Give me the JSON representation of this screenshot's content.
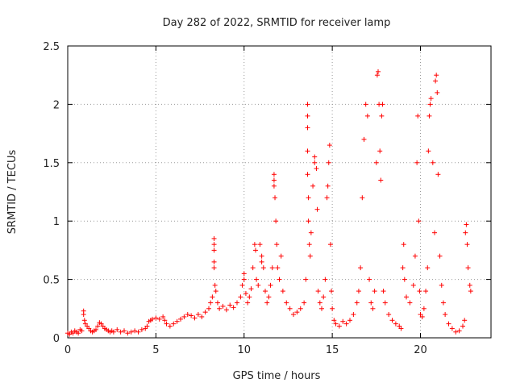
{
  "chart_data": {
    "type": "scatter",
    "title": "Day 282 of 2022, SRMTID for receiver lamp",
    "xlabel": "GPS time / hours",
    "ylabel": "SRMTID / TECUs",
    "xlim": [
      0,
      24
    ],
    "ylim": [
      0,
      2.5
    ],
    "xticks": [
      0,
      5,
      10,
      15,
      20
    ],
    "yticks": [
      0,
      0.5,
      1,
      1.5,
      2,
      2.5
    ],
    "ytick_labels": [
      "0",
      "0.5",
      "1",
      "1.5",
      "2",
      "2.5"
    ],
    "grid": true,
    "marker": "+",
    "color": "#ff0000",
    "series": [
      {
        "name": "SRMTID",
        "points": [
          [
            0.0,
            0.04
          ],
          [
            0.1,
            0.03
          ],
          [
            0.2,
            0.05
          ],
          [
            0.3,
            0.04
          ],
          [
            0.4,
            0.06
          ],
          [
            0.5,
            0.05
          ],
          [
            0.6,
            0.04
          ],
          [
            0.7,
            0.07
          ],
          [
            0.8,
            0.06
          ],
          [
            0.9,
            0.2
          ],
          [
            0.9,
            0.23
          ],
          [
            0.95,
            0.15
          ],
          [
            1.0,
            0.12
          ],
          [
            1.1,
            0.1
          ],
          [
            1.2,
            0.08
          ],
          [
            1.3,
            0.06
          ],
          [
            1.4,
            0.05
          ],
          [
            1.5,
            0.06
          ],
          [
            1.6,
            0.07
          ],
          [
            1.7,
            0.1
          ],
          [
            1.8,
            0.13
          ],
          [
            1.9,
            0.12
          ],
          [
            2.0,
            0.1
          ],
          [
            2.1,
            0.08
          ],
          [
            2.2,
            0.07
          ],
          [
            2.3,
            0.06
          ],
          [
            2.4,
            0.05
          ],
          [
            2.5,
            0.06
          ],
          [
            2.6,
            0.05
          ],
          [
            2.8,
            0.07
          ],
          [
            3.0,
            0.05
          ],
          [
            3.2,
            0.06
          ],
          [
            3.4,
            0.04
          ],
          [
            3.6,
            0.05
          ],
          [
            3.8,
            0.06
          ],
          [
            4.0,
            0.05
          ],
          [
            4.2,
            0.07
          ],
          [
            4.4,
            0.08
          ],
          [
            4.5,
            0.1
          ],
          [
            4.6,
            0.14
          ],
          [
            4.7,
            0.15
          ],
          [
            4.8,
            0.16
          ],
          [
            5.0,
            0.17
          ],
          [
            5.2,
            0.16
          ],
          [
            5.4,
            0.18
          ],
          [
            5.5,
            0.15
          ],
          [
            5.6,
            0.12
          ],
          [
            5.8,
            0.1
          ],
          [
            6.0,
            0.12
          ],
          [
            6.2,
            0.14
          ],
          [
            6.4,
            0.16
          ],
          [
            6.6,
            0.18
          ],
          [
            6.8,
            0.2
          ],
          [
            7.0,
            0.19
          ],
          [
            7.2,
            0.17
          ],
          [
            7.4,
            0.2
          ],
          [
            7.6,
            0.18
          ],
          [
            7.8,
            0.22
          ],
          [
            8.0,
            0.25
          ],
          [
            8.1,
            0.3
          ],
          [
            8.2,
            0.35
          ],
          [
            8.3,
            0.8
          ],
          [
            8.3,
            0.75
          ],
          [
            8.3,
            0.85
          ],
          [
            8.3,
            0.65
          ],
          [
            8.3,
            0.6
          ],
          [
            8.35,
            0.45
          ],
          [
            8.4,
            0.4
          ],
          [
            8.5,
            0.3
          ],
          [
            8.6,
            0.25
          ],
          [
            8.8,
            0.27
          ],
          [
            9.0,
            0.24
          ],
          [
            9.2,
            0.28
          ],
          [
            9.4,
            0.26
          ],
          [
            9.6,
            0.3
          ],
          [
            9.8,
            0.35
          ],
          [
            9.9,
            0.45
          ],
          [
            10.0,
            0.55
          ],
          [
            10.0,
            0.5
          ],
          [
            10.1,
            0.38
          ],
          [
            10.2,
            0.3
          ],
          [
            10.3,
            0.35
          ],
          [
            10.4,
            0.42
          ],
          [
            10.5,
            0.6
          ],
          [
            10.6,
            0.8
          ],
          [
            10.65,
            0.75
          ],
          [
            10.7,
            0.5
          ],
          [
            10.8,
            0.45
          ],
          [
            10.9,
            0.8
          ],
          [
            11.0,
            0.65
          ],
          [
            11.0,
            0.7
          ],
          [
            11.1,
            0.6
          ],
          [
            11.2,
            0.4
          ],
          [
            11.3,
            0.3
          ],
          [
            11.4,
            0.35
          ],
          [
            11.5,
            0.45
          ],
          [
            11.6,
            0.6
          ],
          [
            11.7,
            1.3
          ],
          [
            11.7,
            1.35
          ],
          [
            11.7,
            1.4
          ],
          [
            11.75,
            1.2
          ],
          [
            11.8,
            1.0
          ],
          [
            11.85,
            0.8
          ],
          [
            11.9,
            0.6
          ],
          [
            12.0,
            0.5
          ],
          [
            12.1,
            0.7
          ],
          [
            12.2,
            0.4
          ],
          [
            12.4,
            0.3
          ],
          [
            12.6,
            0.25
          ],
          [
            12.8,
            0.2
          ],
          [
            13.0,
            0.22
          ],
          [
            13.2,
            0.25
          ],
          [
            13.4,
            0.3
          ],
          [
            13.5,
            0.5
          ],
          [
            13.6,
            1.8
          ],
          [
            13.6,
            1.9
          ],
          [
            13.6,
            2.0
          ],
          [
            13.6,
            1.6
          ],
          [
            13.6,
            1.4
          ],
          [
            13.65,
            1.2
          ],
          [
            13.65,
            1.0
          ],
          [
            13.7,
            0.8
          ],
          [
            13.75,
            0.7
          ],
          [
            13.8,
            0.9
          ],
          [
            13.9,
            1.3
          ],
          [
            14.0,
            1.5
          ],
          [
            14.0,
            1.55
          ],
          [
            14.1,
            1.45
          ],
          [
            14.15,
            1.1
          ],
          [
            14.2,
            0.4
          ],
          [
            14.3,
            0.3
          ],
          [
            14.4,
            0.25
          ],
          [
            14.5,
            0.35
          ],
          [
            14.6,
            0.5
          ],
          [
            14.7,
            1.2
          ],
          [
            14.75,
            1.3
          ],
          [
            14.8,
            1.5
          ],
          [
            14.85,
            1.65
          ],
          [
            14.9,
            0.8
          ],
          [
            14.95,
            0.4
          ],
          [
            15.0,
            0.25
          ],
          [
            15.1,
            0.15
          ],
          [
            15.2,
            0.12
          ],
          [
            15.4,
            0.1
          ],
          [
            15.6,
            0.14
          ],
          [
            15.8,
            0.12
          ],
          [
            16.0,
            0.15
          ],
          [
            16.2,
            0.2
          ],
          [
            16.4,
            0.3
          ],
          [
            16.5,
            0.4
          ],
          [
            16.6,
            0.6
          ],
          [
            16.7,
            1.2
          ],
          [
            16.8,
            1.7
          ],
          [
            16.9,
            2.0
          ],
          [
            17.0,
            1.9
          ],
          [
            17.1,
            0.5
          ],
          [
            17.2,
            0.3
          ],
          [
            17.3,
            0.25
          ],
          [
            17.4,
            0.4
          ],
          [
            17.5,
            1.5
          ],
          [
            17.55,
            2.25
          ],
          [
            17.6,
            2.28
          ],
          [
            17.65,
            2.0
          ],
          [
            17.7,
            1.6
          ],
          [
            17.75,
            1.35
          ],
          [
            17.8,
            1.9
          ],
          [
            17.85,
            2.0
          ],
          [
            17.9,
            0.4
          ],
          [
            18.0,
            0.3
          ],
          [
            18.2,
            0.2
          ],
          [
            18.4,
            0.15
          ],
          [
            18.6,
            0.12
          ],
          [
            18.8,
            0.1
          ],
          [
            18.9,
            0.08
          ],
          [
            19.0,
            0.6
          ],
          [
            19.05,
            0.8
          ],
          [
            19.1,
            0.5
          ],
          [
            19.2,
            0.35
          ],
          [
            19.4,
            0.3
          ],
          [
            19.6,
            0.45
          ],
          [
            19.7,
            0.7
          ],
          [
            19.8,
            1.5
          ],
          [
            19.85,
            1.9
          ],
          [
            19.9,
            1.0
          ],
          [
            19.95,
            0.4
          ],
          [
            20.0,
            0.2
          ],
          [
            20.1,
            0.18
          ],
          [
            20.2,
            0.25
          ],
          [
            20.3,
            0.4
          ],
          [
            20.4,
            0.6
          ],
          [
            20.45,
            1.6
          ],
          [
            20.5,
            1.9
          ],
          [
            20.55,
            2.0
          ],
          [
            20.6,
            2.05
          ],
          [
            20.7,
            1.5
          ],
          [
            20.8,
            0.9
          ],
          [
            20.85,
            2.2
          ],
          [
            20.9,
            2.25
          ],
          [
            20.95,
            2.1
          ],
          [
            21.0,
            1.4
          ],
          [
            21.1,
            0.7
          ],
          [
            21.2,
            0.45
          ],
          [
            21.3,
            0.3
          ],
          [
            21.4,
            0.2
          ],
          [
            21.6,
            0.12
          ],
          [
            21.8,
            0.08
          ],
          [
            22.0,
            0.05
          ],
          [
            22.2,
            0.06
          ],
          [
            22.4,
            0.1
          ],
          [
            22.5,
            0.15
          ],
          [
            22.55,
            0.9
          ],
          [
            22.6,
            0.97
          ],
          [
            22.65,
            0.8
          ],
          [
            22.7,
            0.6
          ],
          [
            22.8,
            0.45
          ],
          [
            22.85,
            0.4
          ]
        ]
      }
    ]
  }
}
